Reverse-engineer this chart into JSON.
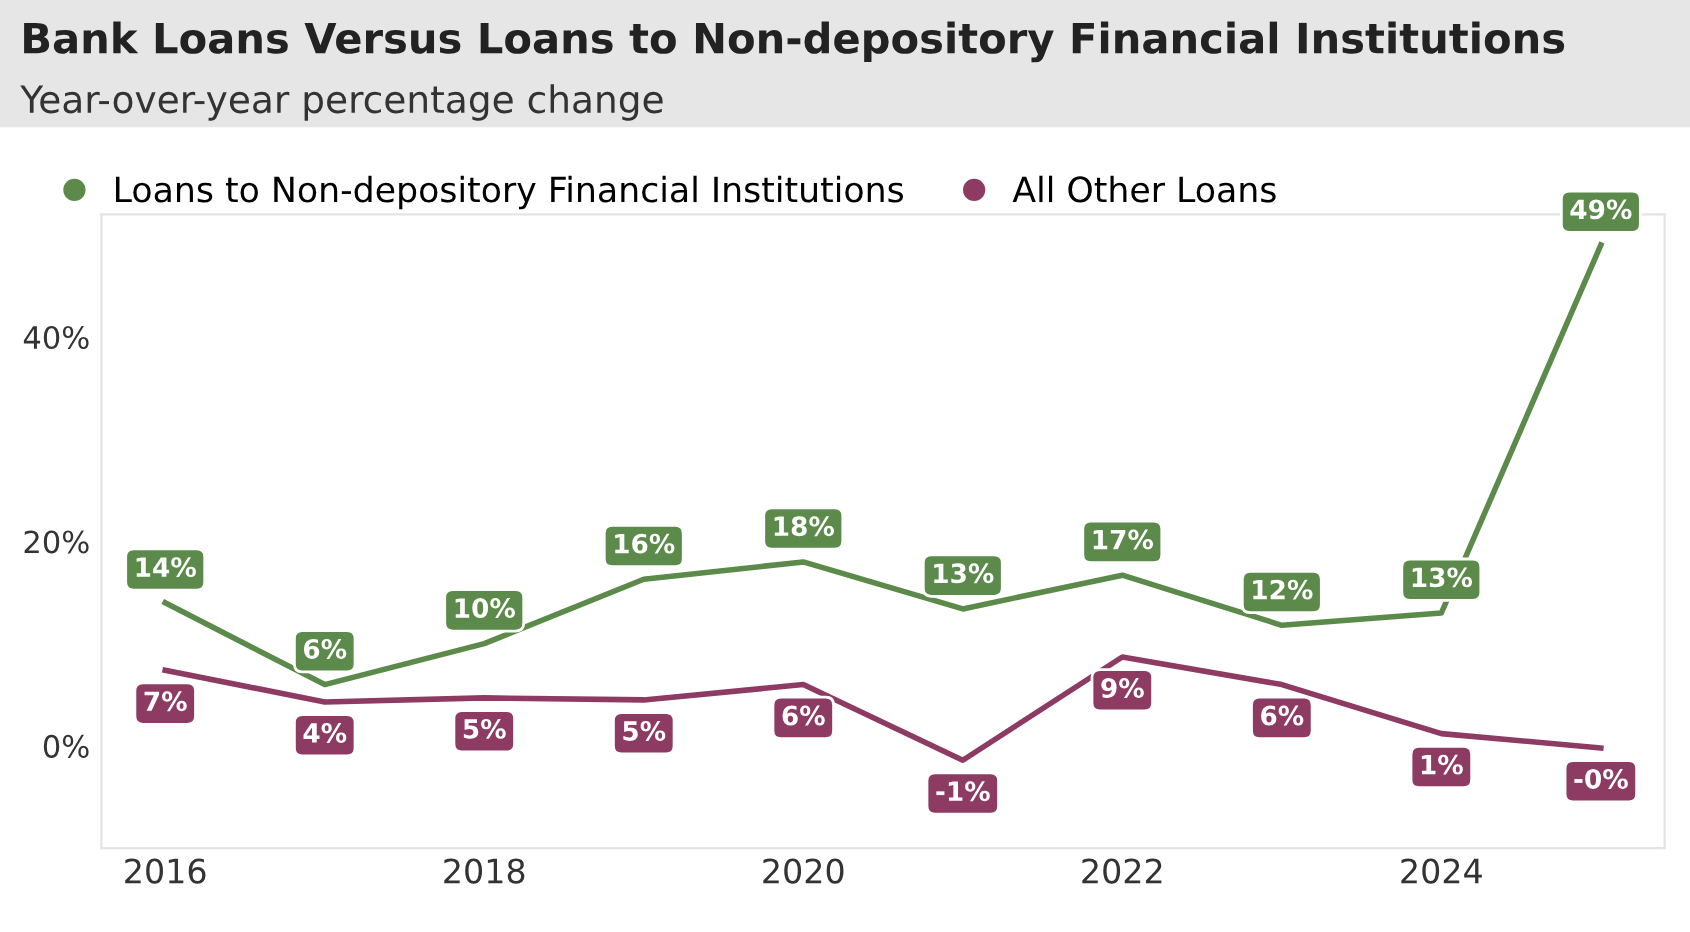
{
  "chart_data": {
    "type": "line",
    "title": "Bank Loans Versus Loans to Non-depository Financial Institutions",
    "subtitle": "Year-over-year percentage change",
    "x": [
      2016,
      2017,
      2018,
      2019,
      2020,
      2021,
      2022,
      2023,
      2024,
      2025
    ],
    "series": [
      {
        "name": "Loans to Non-depository Financial Institutions",
        "color": "#5b8a4a",
        "values": [
          14,
          6,
          10,
          16.3,
          18,
          13.4,
          16.7,
          11.8,
          13,
          49
        ],
        "value_labels": [
          "14%",
          "6%",
          "10%",
          "16%",
          "18%",
          "13%",
          "17%",
          "12%",
          "13%",
          "49%"
        ]
      },
      {
        "name": "All Other Loans",
        "color": "#8e3b63",
        "values": [
          7.4,
          4.3,
          4.7,
          4.5,
          6,
          -1.4,
          8.7,
          6,
          1.2,
          -0.2
        ],
        "value_labels": [
          "7%",
          "4%",
          "5%",
          "5%",
          "6%",
          "-1%",
          "9%",
          "6%",
          "1%",
          "-0%"
        ]
      }
    ],
    "xlim": [
      2015.6,
      2025.4
    ],
    "xticks": [
      2016,
      2018,
      2020,
      2022,
      2024
    ],
    "ylim": [
      -10,
      52
    ],
    "yticks": [
      {
        "value": 0,
        "label": "0%"
      },
      {
        "value": 20,
        "label": "20%"
      },
      {
        "value": 40,
        "label": "40%"
      }
    ],
    "grid": false,
    "legend": "top left",
    "marker": "none",
    "line_style": "solid"
  }
}
